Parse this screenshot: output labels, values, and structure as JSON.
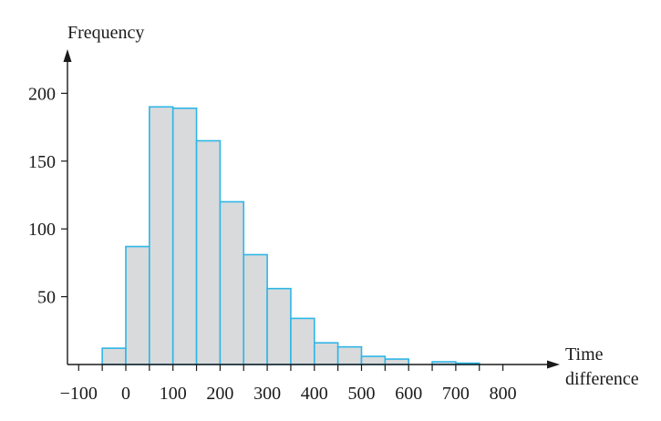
{
  "chart_data": {
    "type": "bar",
    "title": "",
    "ylabel": "Frequency",
    "xlabel_lines": [
      "Time",
      "difference"
    ],
    "bin_width": 50,
    "bins": [
      {
        "start": -50,
        "end": 0,
        "value": 12
      },
      {
        "start": 0,
        "end": 50,
        "value": 87
      },
      {
        "start": 50,
        "end": 100,
        "value": 190
      },
      {
        "start": 100,
        "end": 150,
        "value": 189
      },
      {
        "start": 150,
        "end": 200,
        "value": 165
      },
      {
        "start": 200,
        "end": 250,
        "value": 120
      },
      {
        "start": 250,
        "end": 300,
        "value": 81
      },
      {
        "start": 300,
        "end": 350,
        "value": 56
      },
      {
        "start": 350,
        "end": 400,
        "value": 34
      },
      {
        "start": 400,
        "end": 450,
        "value": 16
      },
      {
        "start": 450,
        "end": 500,
        "value": 13
      },
      {
        "start": 500,
        "end": 550,
        "value": 6
      },
      {
        "start": 550,
        "end": 600,
        "value": 4
      },
      {
        "start": 600,
        "end": 650,
        "value": 0
      },
      {
        "start": 650,
        "end": 700,
        "value": 2
      },
      {
        "start": 700,
        "end": 750,
        "value": 1
      }
    ],
    "xlim": [
      -125,
      880
    ],
    "ylim": [
      0,
      230
    ],
    "xticks": [
      -100,
      -50,
      0,
      50,
      100,
      150,
      200,
      250,
      300,
      350,
      400,
      450,
      500,
      550,
      600,
      650,
      700,
      750,
      800
    ],
    "xtick_labels": [
      {
        "value": -100,
        "label": "−100"
      },
      {
        "value": 0,
        "label": "0"
      },
      {
        "value": 100,
        "label": "100"
      },
      {
        "value": 200,
        "label": "200"
      },
      {
        "value": 300,
        "label": "300"
      },
      {
        "value": 400,
        "label": "400"
      },
      {
        "value": 500,
        "label": "500"
      },
      {
        "value": 600,
        "label": "600"
      },
      {
        "value": 700,
        "label": "700"
      },
      {
        "value": 800,
        "label": "800"
      }
    ],
    "yticks": [
      {
        "value": 50,
        "label": "50"
      },
      {
        "value": 100,
        "label": "100"
      },
      {
        "value": 150,
        "label": "150"
      },
      {
        "value": 200,
        "label": "200"
      }
    ],
    "grid": false,
    "legend": "none",
    "colors": {
      "bar_fill": "#d9dadc",
      "bar_stroke": "#2eb6e6",
      "axis": "#1a1a1a"
    }
  }
}
